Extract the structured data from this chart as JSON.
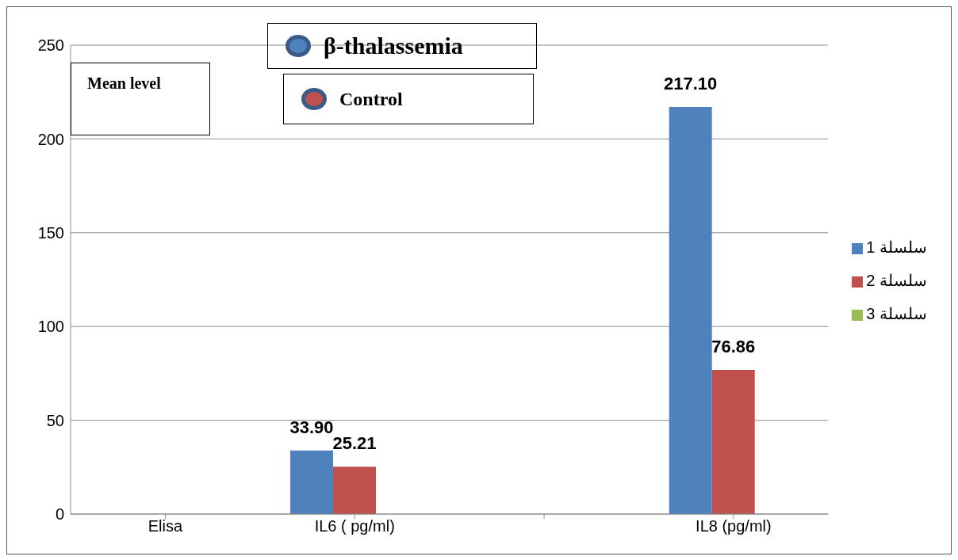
{
  "chart_data": {
    "type": "bar",
    "categories": [
      "Elisa",
      "IL6 ( pg/ml)",
      null,
      "IL8 (pg/ml)"
    ],
    "series": [
      {
        "name": "سلسلة 1",
        "color": "#4f81bd",
        "values": [
          null,
          33.9,
          null,
          217.1
        ],
        "value_labels": [
          null,
          "33.90",
          null,
          "217.10"
        ]
      },
      {
        "name": "سلسلة 2",
        "color": "#c0504d",
        "values": [
          null,
          25.21,
          null,
          76.86
        ],
        "value_labels": [
          null,
          "25.21",
          null,
          "76.86"
        ]
      },
      {
        "name": "سلسلة 3",
        "color": "#9bbb59",
        "values": [
          null,
          null,
          null,
          null
        ]
      }
    ],
    "ylim": [
      0,
      250
    ],
    "yticks": [
      0,
      50,
      100,
      150,
      200,
      250
    ],
    "grid": "y",
    "legend": "right",
    "annotations": [
      "Mean level",
      "β-thalassemia",
      "Control"
    ]
  }
}
